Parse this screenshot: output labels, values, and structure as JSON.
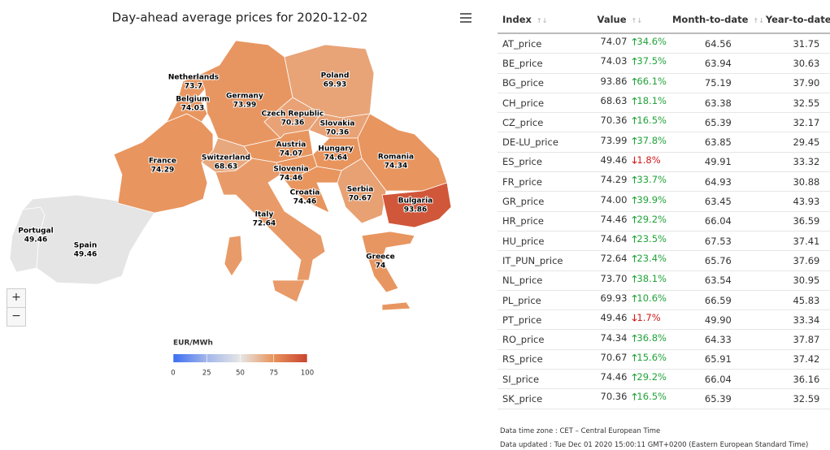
{
  "map": {
    "title": "Day-ahead average prices for 2020-12-02",
    "countries": [
      {
        "name": "Portugal",
        "value": 49.46
      },
      {
        "name": "Spain",
        "value": 49.46
      },
      {
        "name": "France",
        "value": 74.29
      },
      {
        "name": "Belgium",
        "value": 74.03
      },
      {
        "name": "Netherlands",
        "value": 73.7
      },
      {
        "name": "Germany",
        "value": 73.99
      },
      {
        "name": "Poland",
        "value": 69.93
      },
      {
        "name": "Czech Republic",
        "value": 70.36
      },
      {
        "name": "Slovakia",
        "value": 70.36
      },
      {
        "name": "Austria",
        "value": 74.07
      },
      {
        "name": "Switzerland",
        "value": 68.63
      },
      {
        "name": "Hungary",
        "value": 74.64
      },
      {
        "name": "Romania",
        "value": 74.34
      },
      {
        "name": "Slovenia",
        "value": 74.46
      },
      {
        "name": "Croatia",
        "value": 74.46
      },
      {
        "name": "Serbia",
        "value": 70.67
      },
      {
        "name": "Bulgaria",
        "value": 93.86
      },
      {
        "name": "Italy",
        "value": 72.64
      },
      {
        "name": "Greece",
        "value": 74
      }
    ],
    "legend": {
      "title": "EUR/MWh",
      "ticks": [
        0,
        25,
        50,
        75,
        100
      ],
      "colors": [
        "#3b6ef2",
        "#a3b6ea",
        "#e6e6e6",
        "#e8935b",
        "#c9442f"
      ]
    }
  },
  "table": {
    "headers": [
      "Index",
      "Value",
      "Month-to-date",
      "Year-to-date"
    ],
    "rows": [
      [
        "AT_price",
        "74.07",
        "34.6%",
        "up",
        "64.56",
        "31.75"
      ],
      [
        "BE_price",
        "74.03",
        "37.5%",
        "up",
        "63.94",
        "30.63"
      ],
      [
        "BG_price",
        "93.86",
        "66.1%",
        "up",
        "75.19",
        "37.90"
      ],
      [
        "CH_price",
        "68.63",
        "18.1%",
        "up",
        "63.38",
        "32.55"
      ],
      [
        "CZ_price",
        "70.36",
        "16.5%",
        "up",
        "65.39",
        "32.17"
      ],
      [
        "DE-LU_price",
        "73.99",
        "37.8%",
        "up",
        "63.85",
        "29.45"
      ],
      [
        "ES_price",
        "49.46",
        "1.8%",
        "down",
        "49.91",
        "33.32"
      ],
      [
        "FR_price",
        "74.29",
        "33.7%",
        "up",
        "64.93",
        "30.88"
      ],
      [
        "GR_price",
        "74.00",
        "39.9%",
        "up",
        "63.45",
        "43.93"
      ],
      [
        "HR_price",
        "74.46",
        "29.2%",
        "up",
        "66.04",
        "36.59"
      ],
      [
        "HU_price",
        "74.64",
        "23.5%",
        "up",
        "67.53",
        "37.41"
      ],
      [
        "IT_PUN_price",
        "72.64",
        "23.4%",
        "up",
        "65.76",
        "37.69"
      ],
      [
        "NL_price",
        "73.70",
        "38.1%",
        "up",
        "63.54",
        "30.95"
      ],
      [
        "PL_price",
        "69.93",
        "10.6%",
        "up",
        "66.59",
        "45.83"
      ],
      [
        "PT_price",
        "49.46",
        "1.7%",
        "down",
        "49.90",
        "33.34"
      ],
      [
        "RO_price",
        "74.34",
        "36.8%",
        "up",
        "64.33",
        "37.87"
      ],
      [
        "RS_price",
        "70.67",
        "15.6%",
        "up",
        "65.91",
        "37.42"
      ],
      [
        "SI_price",
        "74.46",
        "29.2%",
        "up",
        "66.04",
        "36.16"
      ],
      [
        "SK_price",
        "70.36",
        "16.5%",
        "up",
        "65.39",
        "32.59"
      ]
    ]
  },
  "notes": [
    "Data time zone : CET – Central European Time",
    "Data updated : Tue Dec 01 2020 15:00:11 GMT+0200 (Eastern European Standard Time)"
  ]
}
